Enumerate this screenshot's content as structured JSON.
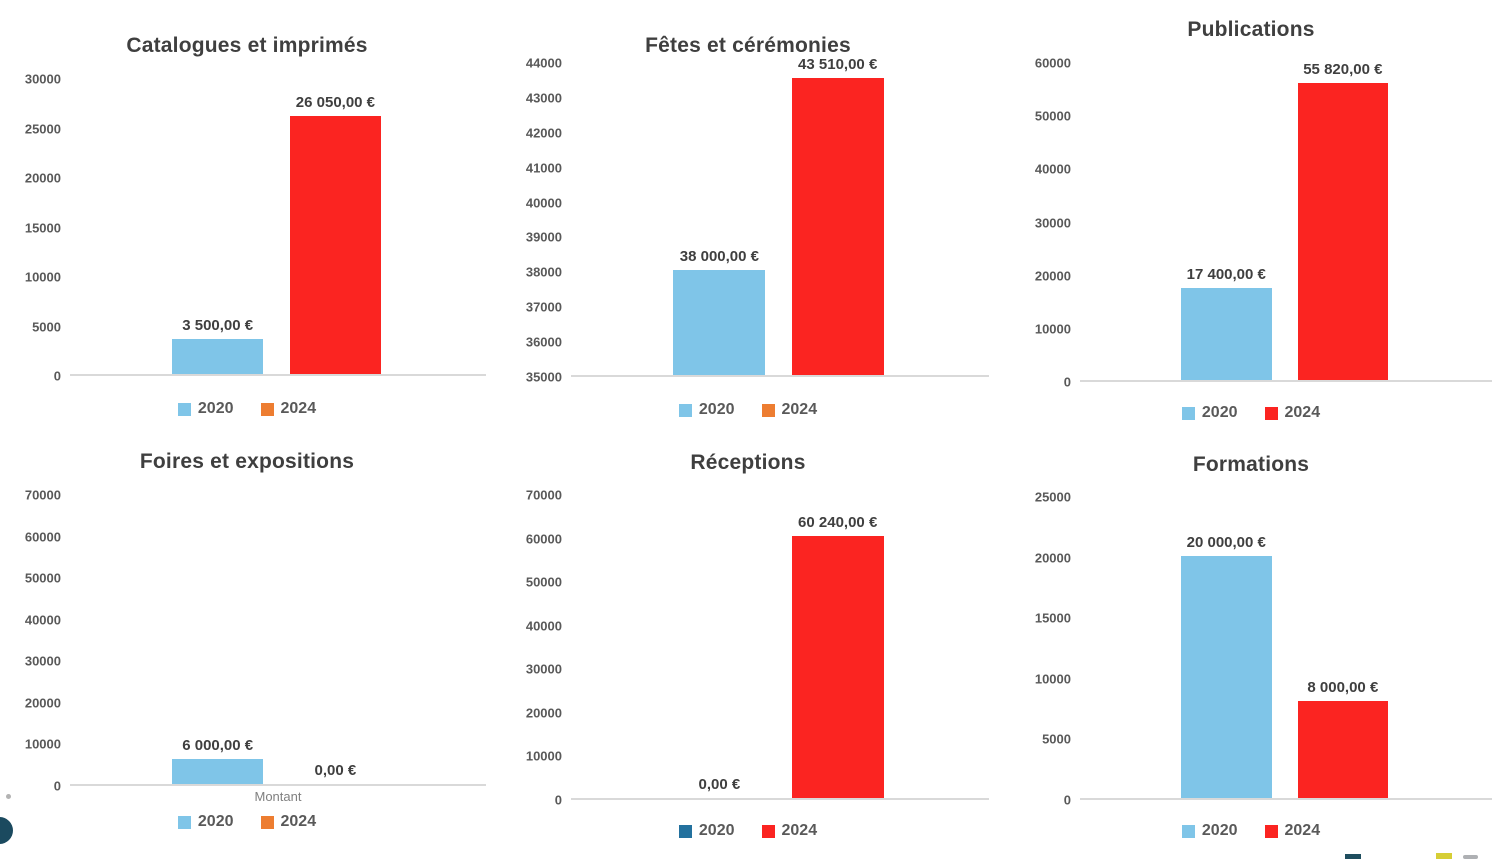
{
  "page": {
    "background": "#ffffff"
  },
  "chart_data": [
    {
      "type": "bar",
      "title": "Catalogues et imprimés",
      "categories": [
        "2020",
        "2024"
      ],
      "values": [
        3500,
        26050
      ],
      "labels": [
        "3 500,00 €",
        "26 050,00 €"
      ],
      "bar_colors": [
        "#7FC5E8",
        "#FB2421"
      ],
      "legend": [
        {
          "label": "2020",
          "color": "#7FC5E8"
        },
        {
          "label": "2024",
          "color": "#ED7D31"
        }
      ],
      "axis": {
        "min": 0,
        "ticks": [
          30000,
          25000,
          20000,
          15000,
          10000,
          5000,
          0
        ],
        "grid": false
      },
      "xlabel": "",
      "legend_position": "bottom"
    },
    {
      "type": "bar",
      "title": "Fêtes et cérémonies",
      "categories": [
        "2020",
        "2024"
      ],
      "values": [
        38000,
        43510
      ],
      "labels": [
        "38 000,00 €",
        "43 510,00 €"
      ],
      "bar_colors": [
        "#7FC5E8",
        "#FB2421"
      ],
      "legend": [
        {
          "label": "2020",
          "color": "#7FC5E8"
        },
        {
          "label": "2024",
          "color": "#ED7D31"
        }
      ],
      "axis": {
        "min": 35000,
        "ticks": [
          44000,
          43000,
          42000,
          41000,
          40000,
          39000,
          38000,
          37000,
          36000,
          35000
        ],
        "grid": false
      },
      "xlabel": "",
      "legend_position": "bottom"
    },
    {
      "type": "bar",
      "title": "Publications",
      "categories": [
        "2020",
        "2024"
      ],
      "values": [
        17400,
        55820
      ],
      "labels": [
        "17 400,00 €",
        "55 820,00 €"
      ],
      "bar_colors": [
        "#7FC5E8",
        "#FB2421"
      ],
      "legend": [
        {
          "label": "2020",
          "color": "#7FC5E8"
        },
        {
          "label": "2024",
          "color": "#FB2421"
        }
      ],
      "axis": {
        "min": 0,
        "ticks": [
          60000,
          50000,
          40000,
          30000,
          20000,
          10000,
          0
        ],
        "grid": false
      },
      "xlabel": "",
      "legend_position": "bottom"
    },
    {
      "type": "bar",
      "title": "Foires et expositions",
      "categories": [
        "2020",
        "2024"
      ],
      "values": [
        6000,
        0
      ],
      "labels": [
        "6 000,00 €",
        "0,00 €"
      ],
      "bar_colors": [
        "#7FC5E8",
        "#FB2421"
      ],
      "legend": [
        {
          "label": "2020",
          "color": "#7FC5E8"
        },
        {
          "label": "2024",
          "color": "#ED7D31"
        }
      ],
      "axis": {
        "min": 0,
        "ticks": [
          70000,
          60000,
          50000,
          40000,
          30000,
          20000,
          10000,
          0
        ],
        "grid": false
      },
      "xlabel": "Montant",
      "legend_position": "bottom"
    },
    {
      "type": "bar",
      "title": "Réceptions",
      "categories": [
        "2020",
        "2024"
      ],
      "values": [
        0,
        60240
      ],
      "labels": [
        "0,00 €",
        "60 240,00 €"
      ],
      "bar_colors": [
        "#7FC5E8",
        "#FB2421"
      ],
      "legend": [
        {
          "label": "2020",
          "color": "#23719E"
        },
        {
          "label": "2024",
          "color": "#FB2421"
        }
      ],
      "axis": {
        "min": 0,
        "ticks": [
          70000,
          60000,
          50000,
          40000,
          30000,
          20000,
          10000,
          0
        ],
        "grid": false
      },
      "xlabel": "",
      "legend_position": "bottom"
    },
    {
      "type": "bar",
      "title": "Formations",
      "categories": [
        "2020",
        "2024"
      ],
      "values": [
        20000,
        8000
      ],
      "labels": [
        "20 000,00 €",
        "8 000,00 €"
      ],
      "bar_colors": [
        "#7FC5E8",
        "#FB2421"
      ],
      "legend": [
        {
          "label": "2020",
          "color": "#7FC5E8"
        },
        {
          "label": "2024",
          "color": "#FB2421"
        }
      ],
      "axis": {
        "min": 0,
        "ticks": [
          25000,
          20000,
          15000,
          10000,
          5000,
          0
        ],
        "grid": false
      },
      "xlabel": "",
      "legend_position": "bottom"
    }
  ],
  "decor": {
    "corner_circle_color": "#1B4A5F",
    "stray_dot_color": "#B3B3B3",
    "bottom_marks": [
      {
        "name": "navy-mark",
        "color": "#1F4E5F"
      },
      {
        "name": "yellow-mark",
        "color": "#D6CE35"
      },
      {
        "name": "gray-mark",
        "color": "#AEB0B3"
      }
    ]
  }
}
